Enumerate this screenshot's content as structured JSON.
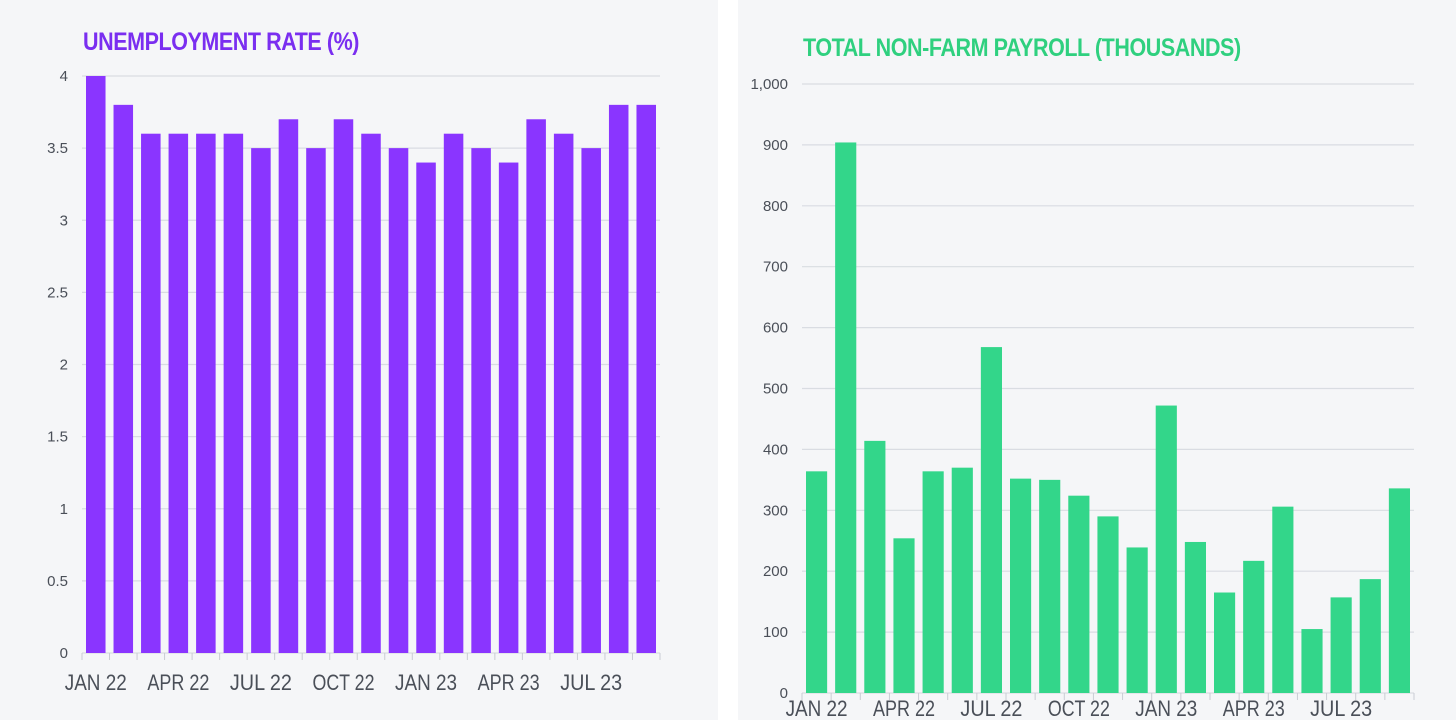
{
  "chart_data": [
    {
      "type": "bar",
      "title": "UNEMPLOYMENT RATE (%)",
      "color": "#8a35ff",
      "title_color": "#7a2ef0",
      "ylim": [
        0,
        4
      ],
      "yticks": [
        0,
        0.5,
        1,
        1.5,
        2,
        2.5,
        3,
        3.5,
        4
      ],
      "ytick_labels": [
        "0",
        "0.5",
        "1",
        "1.5",
        "2",
        "2.5",
        "3",
        "3.5",
        "4"
      ],
      "categories": [
        "Jan 22",
        "Feb 22",
        "Mar 22",
        "Apr 22",
        "May 22",
        "Jun 22",
        "Jul 22",
        "Aug 22",
        "Sep 22",
        "Oct 22",
        "Nov 22",
        "Dec 22",
        "Jan 23",
        "Feb 23",
        "Mar 23",
        "Apr 23",
        "May 23",
        "Jun 23",
        "Jul 23",
        "Aug 23",
        "Sep 23"
      ],
      "xtick_labels": [
        {
          "index": 0,
          "label": "JAN 22"
        },
        {
          "index": 3,
          "label": "APR 22"
        },
        {
          "index": 6,
          "label": "JUL 22"
        },
        {
          "index": 9,
          "label": "OCT 22"
        },
        {
          "index": 12,
          "label": "JAN 23"
        },
        {
          "index": 15,
          "label": "APR 23"
        },
        {
          "index": 18,
          "label": "JUL 23"
        }
      ],
      "values": [
        4.0,
        3.8,
        3.6,
        3.6,
        3.6,
        3.6,
        3.5,
        3.7,
        3.5,
        3.7,
        3.6,
        3.5,
        3.4,
        3.6,
        3.5,
        3.4,
        3.7,
        3.6,
        3.5,
        3.8,
        3.8
      ],
      "grid": true
    },
    {
      "type": "bar",
      "title": "TOTAL NON-FARM PAYROLL (THOUSANDS)",
      "color": "#33d68a",
      "title_color": "#2fd07f",
      "ylim": [
        0,
        1000
      ],
      "yticks": [
        0,
        100,
        200,
        300,
        400,
        500,
        600,
        700,
        800,
        900,
        1000
      ],
      "ytick_labels": [
        "0",
        "100",
        "200",
        "300",
        "400",
        "500",
        "600",
        "700",
        "800",
        "900",
        "1,000"
      ],
      "categories": [
        "Jan 22",
        "Feb 22",
        "Mar 22",
        "Apr 22",
        "May 22",
        "Jun 22",
        "Jul 22",
        "Aug 22",
        "Sep 22",
        "Oct 22",
        "Nov 22",
        "Dec 22",
        "Jan 23",
        "Feb 23",
        "Mar 23",
        "Apr 23",
        "May 23",
        "Jun 23",
        "Jul 23",
        "Aug 23",
        "Sep 23"
      ],
      "xtick_labels": [
        {
          "index": 0,
          "label": "JAN 22"
        },
        {
          "index": 3,
          "label": "APR 22"
        },
        {
          "index": 6,
          "label": "JUL 22"
        },
        {
          "index": 9,
          "label": "OCT 22"
        },
        {
          "index": 12,
          "label": "JAN 23"
        },
        {
          "index": 15,
          "label": "APR 23"
        },
        {
          "index": 18,
          "label": "JUL 23"
        }
      ],
      "values": [
        364,
        904,
        414,
        254,
        364,
        370,
        568,
        352,
        350,
        324,
        290,
        239,
        472,
        248,
        165,
        217,
        306,
        105,
        157,
        187,
        336
      ],
      "grid": true
    }
  ]
}
